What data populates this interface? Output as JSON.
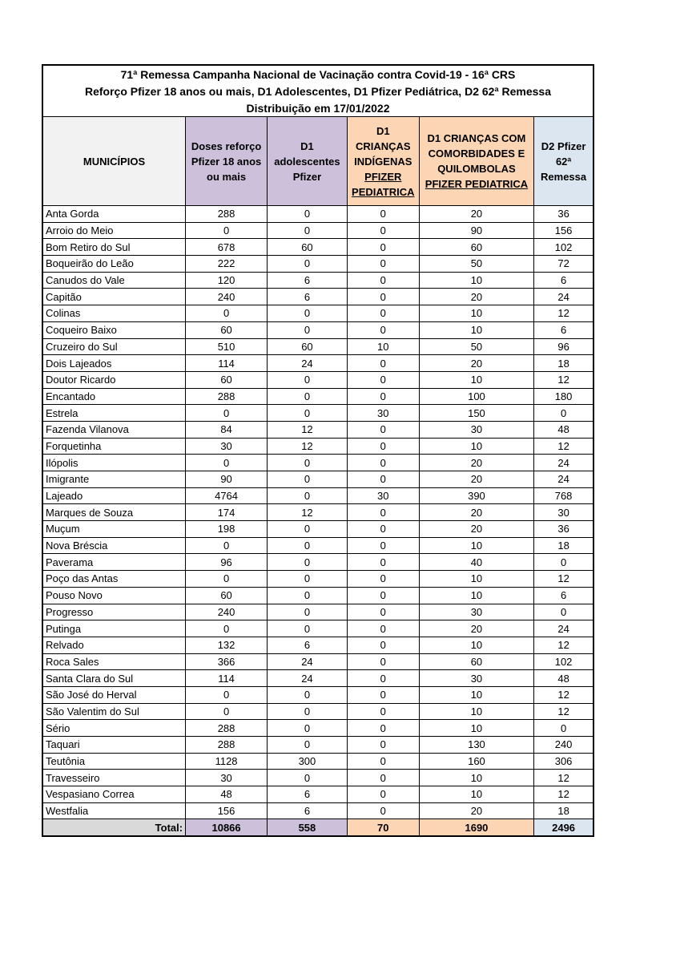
{
  "title_lines": [
    "71ª Remessa Campanha Nacional de Vacinação contra Covid-19 - 16ª CRS",
    "Reforço Pfizer 18 anos ou mais, D1 Adolescentes, D1 Pfizer Pediátrica, D2 62ª Remessa",
    "Distribuição em 17/01/2022"
  ],
  "headers": {
    "municipios": "MUNICÍPIOS",
    "reforco": [
      "Doses reforço",
      "Pfizer 18 anos",
      "ou mais"
    ],
    "adolescentes": [
      "D1",
      "adolescentes",
      "Pfizer"
    ],
    "indigenas": [
      "D1",
      "CRIANÇAS",
      "INDÍGENAS",
      "PFIZER",
      "PEDIATRICA"
    ],
    "comorbidades": [
      "D1 CRIANÇAS COM",
      "COMORBIDADES E",
      "QUILOMBOLAS",
      "PFIZER PEDIATRICA"
    ],
    "d2": [
      "D2 Pfizer",
      "62ª",
      "Remessa"
    ]
  },
  "colors": {
    "municipios_header": "#f2f2f2",
    "purple": "#ccc0da",
    "orange": "#fcd5b4",
    "blue": "#dce6f1",
    "total_label": "#d9d9d9"
  },
  "rows": [
    [
      "Anta Gorda",
      "288",
      "0",
      "0",
      "20",
      "36"
    ],
    [
      "Arroio do Meio",
      "0",
      "0",
      "0",
      "90",
      "156"
    ],
    [
      "Bom Retiro do Sul",
      "678",
      "60",
      "0",
      "60",
      "102"
    ],
    [
      "Boqueirão do Leão",
      "222",
      "0",
      "0",
      "50",
      "72"
    ],
    [
      "Canudos do Vale",
      "120",
      "6",
      "0",
      "10",
      "6"
    ],
    [
      "Capitão",
      "240",
      "6",
      "0",
      "20",
      "24"
    ],
    [
      "Colinas",
      "0",
      "0",
      "0",
      "10",
      "12"
    ],
    [
      "Coqueiro Baixo",
      "60",
      "0",
      "0",
      "10",
      "6"
    ],
    [
      "Cruzeiro do Sul",
      "510",
      "60",
      "10",
      "50",
      "96"
    ],
    [
      "Dois Lajeados",
      "114",
      "24",
      "0",
      "20",
      "18"
    ],
    [
      "Doutor Ricardo",
      "60",
      "0",
      "0",
      "10",
      "12"
    ],
    [
      "Encantado",
      "288",
      "0",
      "0",
      "100",
      "180"
    ],
    [
      "Estrela",
      "0",
      "0",
      "30",
      "150",
      "0"
    ],
    [
      "Fazenda Vilanova",
      "84",
      "12",
      "0",
      "30",
      "48"
    ],
    [
      "Forquetinha",
      "30",
      "12",
      "0",
      "10",
      "12"
    ],
    [
      "Ilópolis",
      "0",
      "0",
      "0",
      "20",
      "24"
    ],
    [
      "Imigrante",
      "90",
      "0",
      "0",
      "20",
      "24"
    ],
    [
      "Lajeado",
      "4764",
      "0",
      "30",
      "390",
      "768"
    ],
    [
      "Marques de Souza",
      "174",
      "12",
      "0",
      "20",
      "30"
    ],
    [
      "Muçum",
      "198",
      "0",
      "0",
      "20",
      "36"
    ],
    [
      "Nova Bréscia",
      "0",
      "0",
      "0",
      "10",
      "18"
    ],
    [
      "Paverama",
      "96",
      "0",
      "0",
      "40",
      "0"
    ],
    [
      "Poço das Antas",
      "0",
      "0",
      "0",
      "10",
      "12"
    ],
    [
      "Pouso Novo",
      "60",
      "0",
      "0",
      "10",
      "6"
    ],
    [
      "Progresso",
      "240",
      "0",
      "0",
      "30",
      "0"
    ],
    [
      "Putinga",
      "0",
      "0",
      "0",
      "20",
      "24"
    ],
    [
      "Relvado",
      "132",
      "6",
      "0",
      "10",
      "12"
    ],
    [
      "Roca Sales",
      "366",
      "24",
      "0",
      "60",
      "102"
    ],
    [
      "Santa Clara do Sul",
      "114",
      "24",
      "0",
      "30",
      "48"
    ],
    [
      "São José do Herval",
      "0",
      "0",
      "0",
      "10",
      "12"
    ],
    [
      "São Valentim do Sul",
      "0",
      "0",
      "0",
      "10",
      "12"
    ],
    [
      "Sério",
      "288",
      "0",
      "0",
      "10",
      "0"
    ],
    [
      "Taquari",
      "288",
      "0",
      "0",
      "130",
      "240"
    ],
    [
      "Teutônia",
      "1128",
      "300",
      "0",
      "160",
      "306"
    ],
    [
      "Travesseiro",
      "30",
      "0",
      "0",
      "10",
      "12"
    ],
    [
      "Vespasiano Correa",
      "48",
      "6",
      "0",
      "10",
      "12"
    ],
    [
      "Westfalia",
      "156",
      "6",
      "0",
      "20",
      "18"
    ]
  ],
  "total": [
    "Total:",
    "10866",
    "558",
    "70",
    "1690",
    "2496"
  ]
}
